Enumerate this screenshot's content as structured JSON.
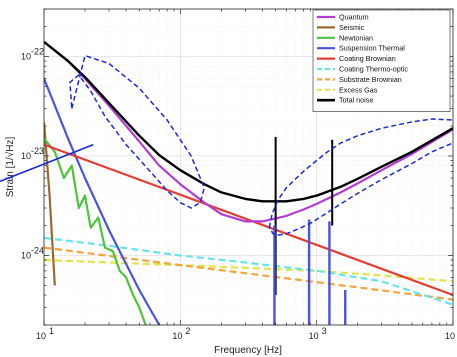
{
  "chart_data": {
    "type": "line",
    "xlabel": "Frequency [Hz]",
    "ylabel": "Strain [1/√Hz]",
    "x_scale": "log",
    "y_scale": "log",
    "xlim": [
      10,
      10000
    ],
    "ylim": [
      2e-25,
      3e-22
    ],
    "grid": true,
    "legend_position": "top-right",
    "x_ticks": [
      {
        "value": 10,
        "base": "10",
        "exp": "1"
      },
      {
        "value": 100,
        "base": "10",
        "exp": "2"
      },
      {
        "value": 1000,
        "base": "10",
        "exp": "3"
      },
      {
        "value": 10000,
        "base": "10",
        "exp": "4"
      }
    ],
    "y_ticks": [
      {
        "value": 1e-24,
        "base": "10",
        "exp": "-24"
      },
      {
        "value": 1e-23,
        "base": "10",
        "exp": "-23"
      },
      {
        "value": 1e-22,
        "base": "10",
        "exp": "-22"
      }
    ],
    "series": [
      {
        "name": "Quantum",
        "color": "#b43cd4",
        "dash": "solid",
        "x": [
          10,
          15,
          20,
          30,
          50,
          70,
          100,
          150,
          200,
          300,
          400,
          600,
          800,
          1000,
          1500,
          2000,
          3000,
          5000,
          10000
        ],
        "y": [
          1.4e-22,
          9e-23,
          6e-23,
          3.2e-23,
          1.4e-23,
          8e-24,
          5.2e-24,
          3.4e-24,
          2.6e-24,
          2.2e-24,
          2.2e-24,
          2.5e-24,
          2.9e-24,
          3.3e-24,
          4.3e-24,
          5.3e-24,
          7.2e-24,
          1.05e-23,
          1.85e-23
        ]
      },
      {
        "name": "Seismic",
        "color": "#9c6a2e",
        "dash": "solid",
        "x": [
          10,
          11,
          12
        ],
        "y": [
          2.2e-23,
          4e-24,
          5e-25
        ]
      },
      {
        "name": "Newtonian",
        "color": "#4cc43c",
        "dash": "solid",
        "x": [
          10,
          12,
          14,
          16,
          18,
          20,
          22,
          25,
          28,
          32,
          36,
          40,
          45,
          50,
          60
        ],
        "y": [
          1.5e-23,
          1.1e-23,
          6e-24,
          8e-24,
          3e-24,
          4e-24,
          1.9e-24,
          2.4e-24,
          1.2e-24,
          1.1e-24,
          7e-25,
          6e-25,
          4e-25,
          3e-25,
          1.5e-25
        ]
      },
      {
        "name": "Suspension Thermal",
        "color": "#4a52e6",
        "dash": "solid",
        "x": [
          10,
          15,
          20,
          30,
          50,
          70
        ],
        "y": [
          6e-23,
          1.5e-23,
          6e-24,
          1.8e-24,
          4.5e-25,
          2e-25
        ]
      },
      {
        "name": "Coating Brownian",
        "color": "#e43c2e",
        "dash": "solid",
        "x": [
          10,
          10000
        ],
        "y": [
          1.3e-23,
          4e-25
        ]
      },
      {
        "name": "Coating Thermo-optic",
        "color": "#66e4ec",
        "dash": "dashed",
        "x": [
          10,
          30,
          100,
          300,
          1000,
          3000,
          10000
        ],
        "y": [
          1.5e-24,
          1.25e-24,
          1e-24,
          8.5e-25,
          7e-25,
          5.5e-25,
          3.2e-25
        ]
      },
      {
        "name": "Substrate Brownian",
        "color": "#f4a43c",
        "dash": "dashed",
        "x": [
          10,
          100,
          1000,
          10000
        ],
        "y": [
          1.2e-24,
          8e-25,
          5.4e-25,
          3.6e-25
        ]
      },
      {
        "name": "Excess Gas",
        "color": "#e0e44c",
        "dash": "dashed",
        "x": [
          10,
          30,
          100,
          300,
          1000,
          3000,
          10000
        ],
        "y": [
          9e-25,
          8.5e-25,
          8e-25,
          7.5e-25,
          7e-25,
          6.3e-25,
          5.5e-25
        ]
      },
      {
        "name": "Total noise",
        "color": "#000000",
        "dash": "solid",
        "x": [
          10,
          15,
          20,
          30,
          50,
          70,
          100,
          150,
          200,
          300,
          400,
          600,
          800,
          1000,
          1500,
          2000,
          3000,
          5000,
          10000
        ],
        "y": [
          1.4e-22,
          9e-23,
          6.2e-23,
          3.4e-23,
          1.6e-23,
          1.02e-23,
          7.2e-24,
          5.2e-24,
          4.3e-24,
          3.7e-24,
          3.5e-24,
          3.5e-24,
          3.7e-24,
          4e-24,
          4.9e-24,
          5.9e-24,
          7.8e-24,
          1.1e-23,
          1.9e-23
        ]
      }
    ],
    "spikes": [
      {
        "series": "Total noise",
        "color": "#000000",
        "x": 500,
        "y_low": 4e-25,
        "y_high": 1.55e-23
      },
      {
        "series": "Total noise",
        "color": "#000000",
        "x": 1300,
        "y_low": 2e-24,
        "y_high": 1.45e-23
      },
      {
        "series": "Suspension Thermal",
        "color": "#4a52e6",
        "x": 490,
        "y_low": 2e-25,
        "y_high": 2e-24
      },
      {
        "series": "Suspension Thermal",
        "color": "#4a52e6",
        "x": 880,
        "y_low": 2e-25,
        "y_high": 2.3e-24
      },
      {
        "series": "Suspension Thermal",
        "color": "#4a52e6",
        "x": 1240,
        "y_low": 2e-25,
        "y_high": 2.2e-24
      },
      {
        "series": "Suspension Thermal",
        "color": "#4a52e6",
        "x": 1620,
        "y_low": 2e-25,
        "y_high": 4.5e-25
      }
    ],
    "contours": [
      {
        "color": "#1a2ad8",
        "x": [
          16,
          20,
          30,
          50,
          80,
          120,
          150,
          140,
          120,
          100,
          80,
          60,
          40,
          28,
          22,
          18,
          15.5,
          16
        ],
        "y": [
          3e-23,
          1.02e-22,
          8.5e-23,
          4.8e-23,
          2.3e-23,
          1e-23,
          4.8e-24,
          3.4e-24,
          3e-24,
          3.4e-24,
          4.5e-24,
          7e-24,
          1.3e-23,
          2.5e-23,
          4.5e-23,
          6.5e-23,
          5.5e-23,
          3e-23
        ]
      },
      {
        "color": "#1a2ad8",
        "x": [
          450,
          470,
          520,
          600,
          800,
          1000,
          1200,
          1500,
          2000,
          3000,
          5000,
          7000,
          10000,
          10500,
          10000,
          7000,
          5000,
          3000,
          2000,
          1500,
          1200,
          900,
          700,
          600,
          520,
          480,
          450
        ],
        "y": [
          1.9e-24,
          2.6e-24,
          3.6e-24,
          4.8e-24,
          7e-24,
          9e-24,
          1.1e-23,
          1.35e-23,
          1.6e-23,
          1.9e-23,
          2.2e-23,
          2.35e-23,
          2.3e-23,
          1.8e-23,
          1.35e-23,
          1.1e-23,
          8.4e-24,
          5.8e-24,
          4.2e-24,
          3.3e-24,
          2.7e-24,
          2.1e-24,
          1.8e-24,
          1.65e-24,
          1.6e-24,
          1.65e-24,
          1.9e-24
        ]
      }
    ],
    "annotations": [
      {
        "type": "line",
        "color": "#1a2ad8",
        "x1": 10,
        "y1": 7e-24,
        "x2": 23,
        "y2": 1.3e-23
      }
    ]
  }
}
